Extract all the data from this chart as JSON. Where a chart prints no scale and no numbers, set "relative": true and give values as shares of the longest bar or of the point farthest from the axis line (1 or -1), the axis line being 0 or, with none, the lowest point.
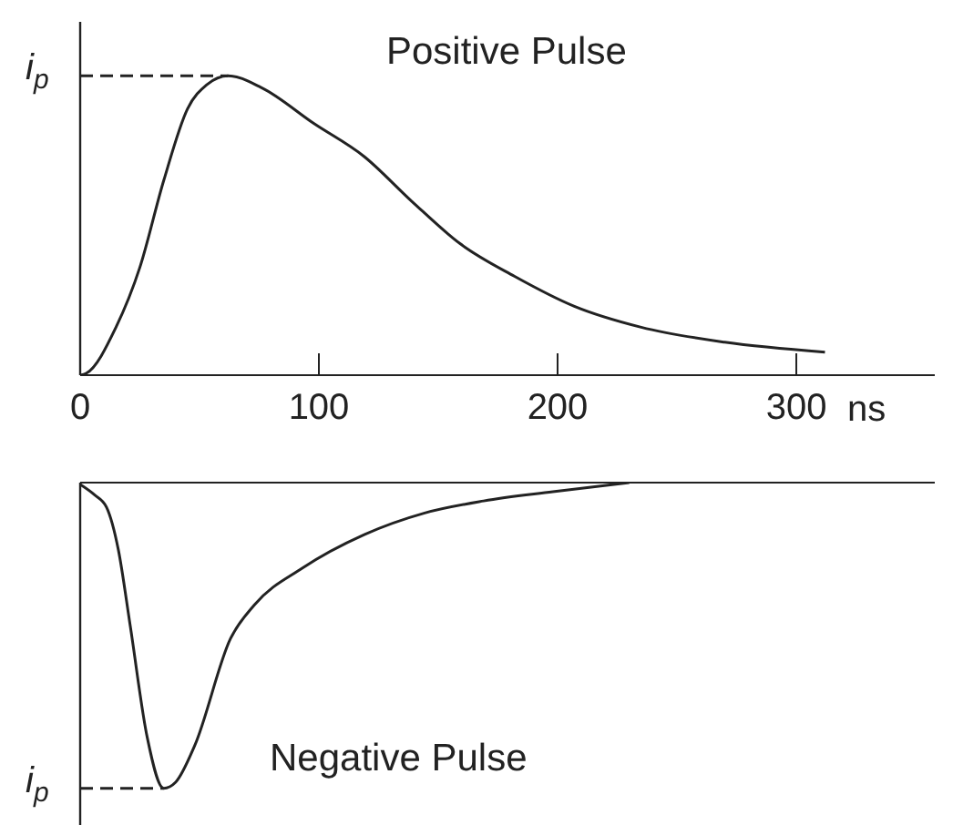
{
  "chart_data": [
    {
      "type": "line",
      "title": "Positive Pulse",
      "xlabel": "ns",
      "relative": true,
      "xlim": [
        0,
        358
      ],
      "xticks": [
        0,
        100,
        200,
        300
      ],
      "marker": "none",
      "line_style": "solid",
      "grid": false,
      "legend": false,
      "x": [
        0,
        2.5,
        15,
        25,
        35,
        45,
        53,
        62,
        76,
        98,
        119,
        139,
        159,
        182,
        207,
        235,
        270,
        312
      ],
      "series": [
        {
          "color": "#222222",
          "values": [
            0,
            0.006,
            0.16,
            0.36,
            0.65,
            0.89,
            0.97,
            1.0,
            0.96,
            0.84,
            0.73,
            0.58,
            0.44,
            0.33,
            0.23,
            0.16,
            0.11,
            0.077
          ]
        }
      ],
      "ref_lines": [
        {
          "axis": "y",
          "value": 1,
          "label": "i$_{p}$",
          "line_style": "dashed",
          "color": "#222222"
        }
      ]
    },
    {
      "type": "line",
      "title": "Negative Pulse",
      "relative": true,
      "xlim": [
        0,
        358
      ],
      "xticks": [
        0,
        100,
        200,
        300
      ],
      "tick_labels": false,
      "marker": "none",
      "line_style": "solid",
      "grid": false,
      "legend": false,
      "x": [
        0,
        6,
        11,
        16,
        21,
        28,
        35,
        40,
        48,
        63,
        73,
        93,
        119,
        144,
        169,
        198,
        230
      ],
      "series": [
        {
          "color": "#222222",
          "values": [
            -0.006,
            -0.04,
            -0.08,
            -0.22,
            -0.47,
            -0.83,
            -1.0,
            -0.98,
            -0.86,
            -0.51,
            -0.4,
            -0.28,
            -0.17,
            -0.1,
            -0.06,
            -0.03,
            0
          ]
        }
      ],
      "ref_lines": [
        {
          "axis": "y",
          "value": -1,
          "label": "i$_{p}$",
          "line_style": "dashed",
          "color": "#222222"
        }
      ]
    }
  ]
}
